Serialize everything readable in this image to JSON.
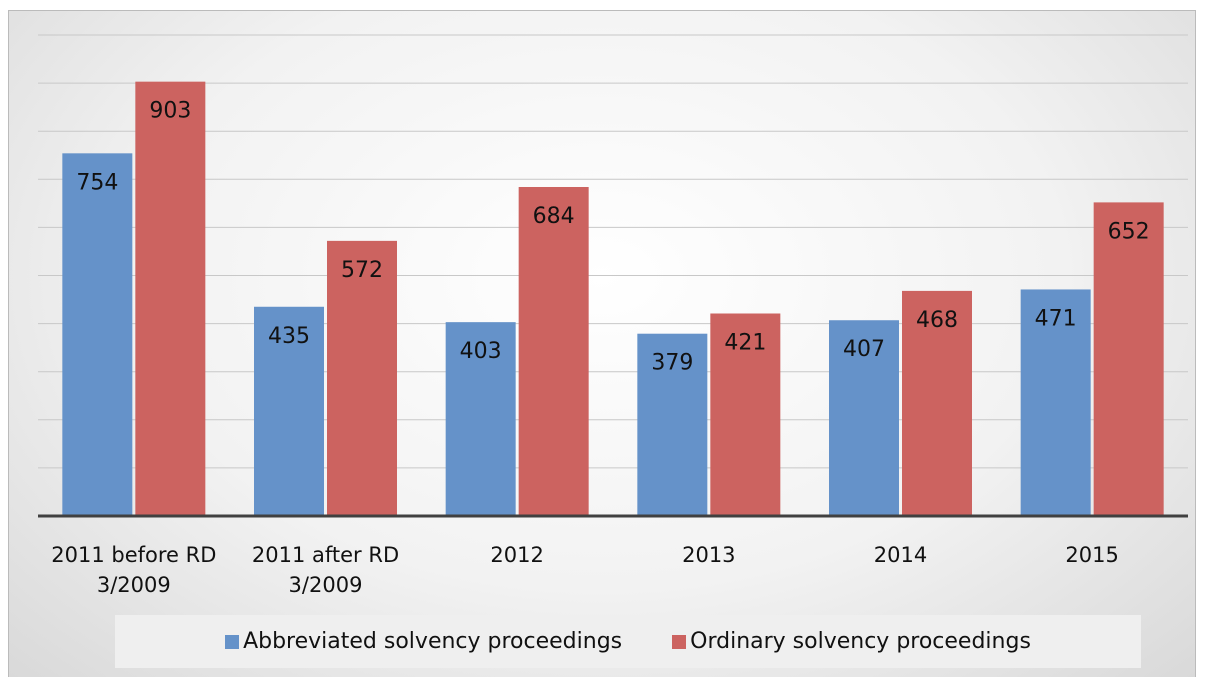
{
  "chart_data": {
    "type": "bar",
    "categories": [
      "2011 before RD 3/2009",
      "2011 after RD 3/2009",
      "2012",
      "2013",
      "2014",
      "2015"
    ],
    "series": [
      {
        "name": "Abbreviated solvency proceedings",
        "color": "#6592c9",
        "values": [
          754,
          435,
          403,
          379,
          407,
          471
        ]
      },
      {
        "name": "Ordinary solvency proceedings",
        "color": "#cc6360",
        "values": [
          903,
          572,
          684,
          421,
          468,
          652
        ]
      }
    ],
    "ylim": [
      0,
      1000
    ],
    "yticks": [
      0,
      100,
      200,
      300,
      400,
      500,
      600,
      700,
      800,
      900,
      1000
    ],
    "grid": true,
    "legend": "bottom"
  }
}
